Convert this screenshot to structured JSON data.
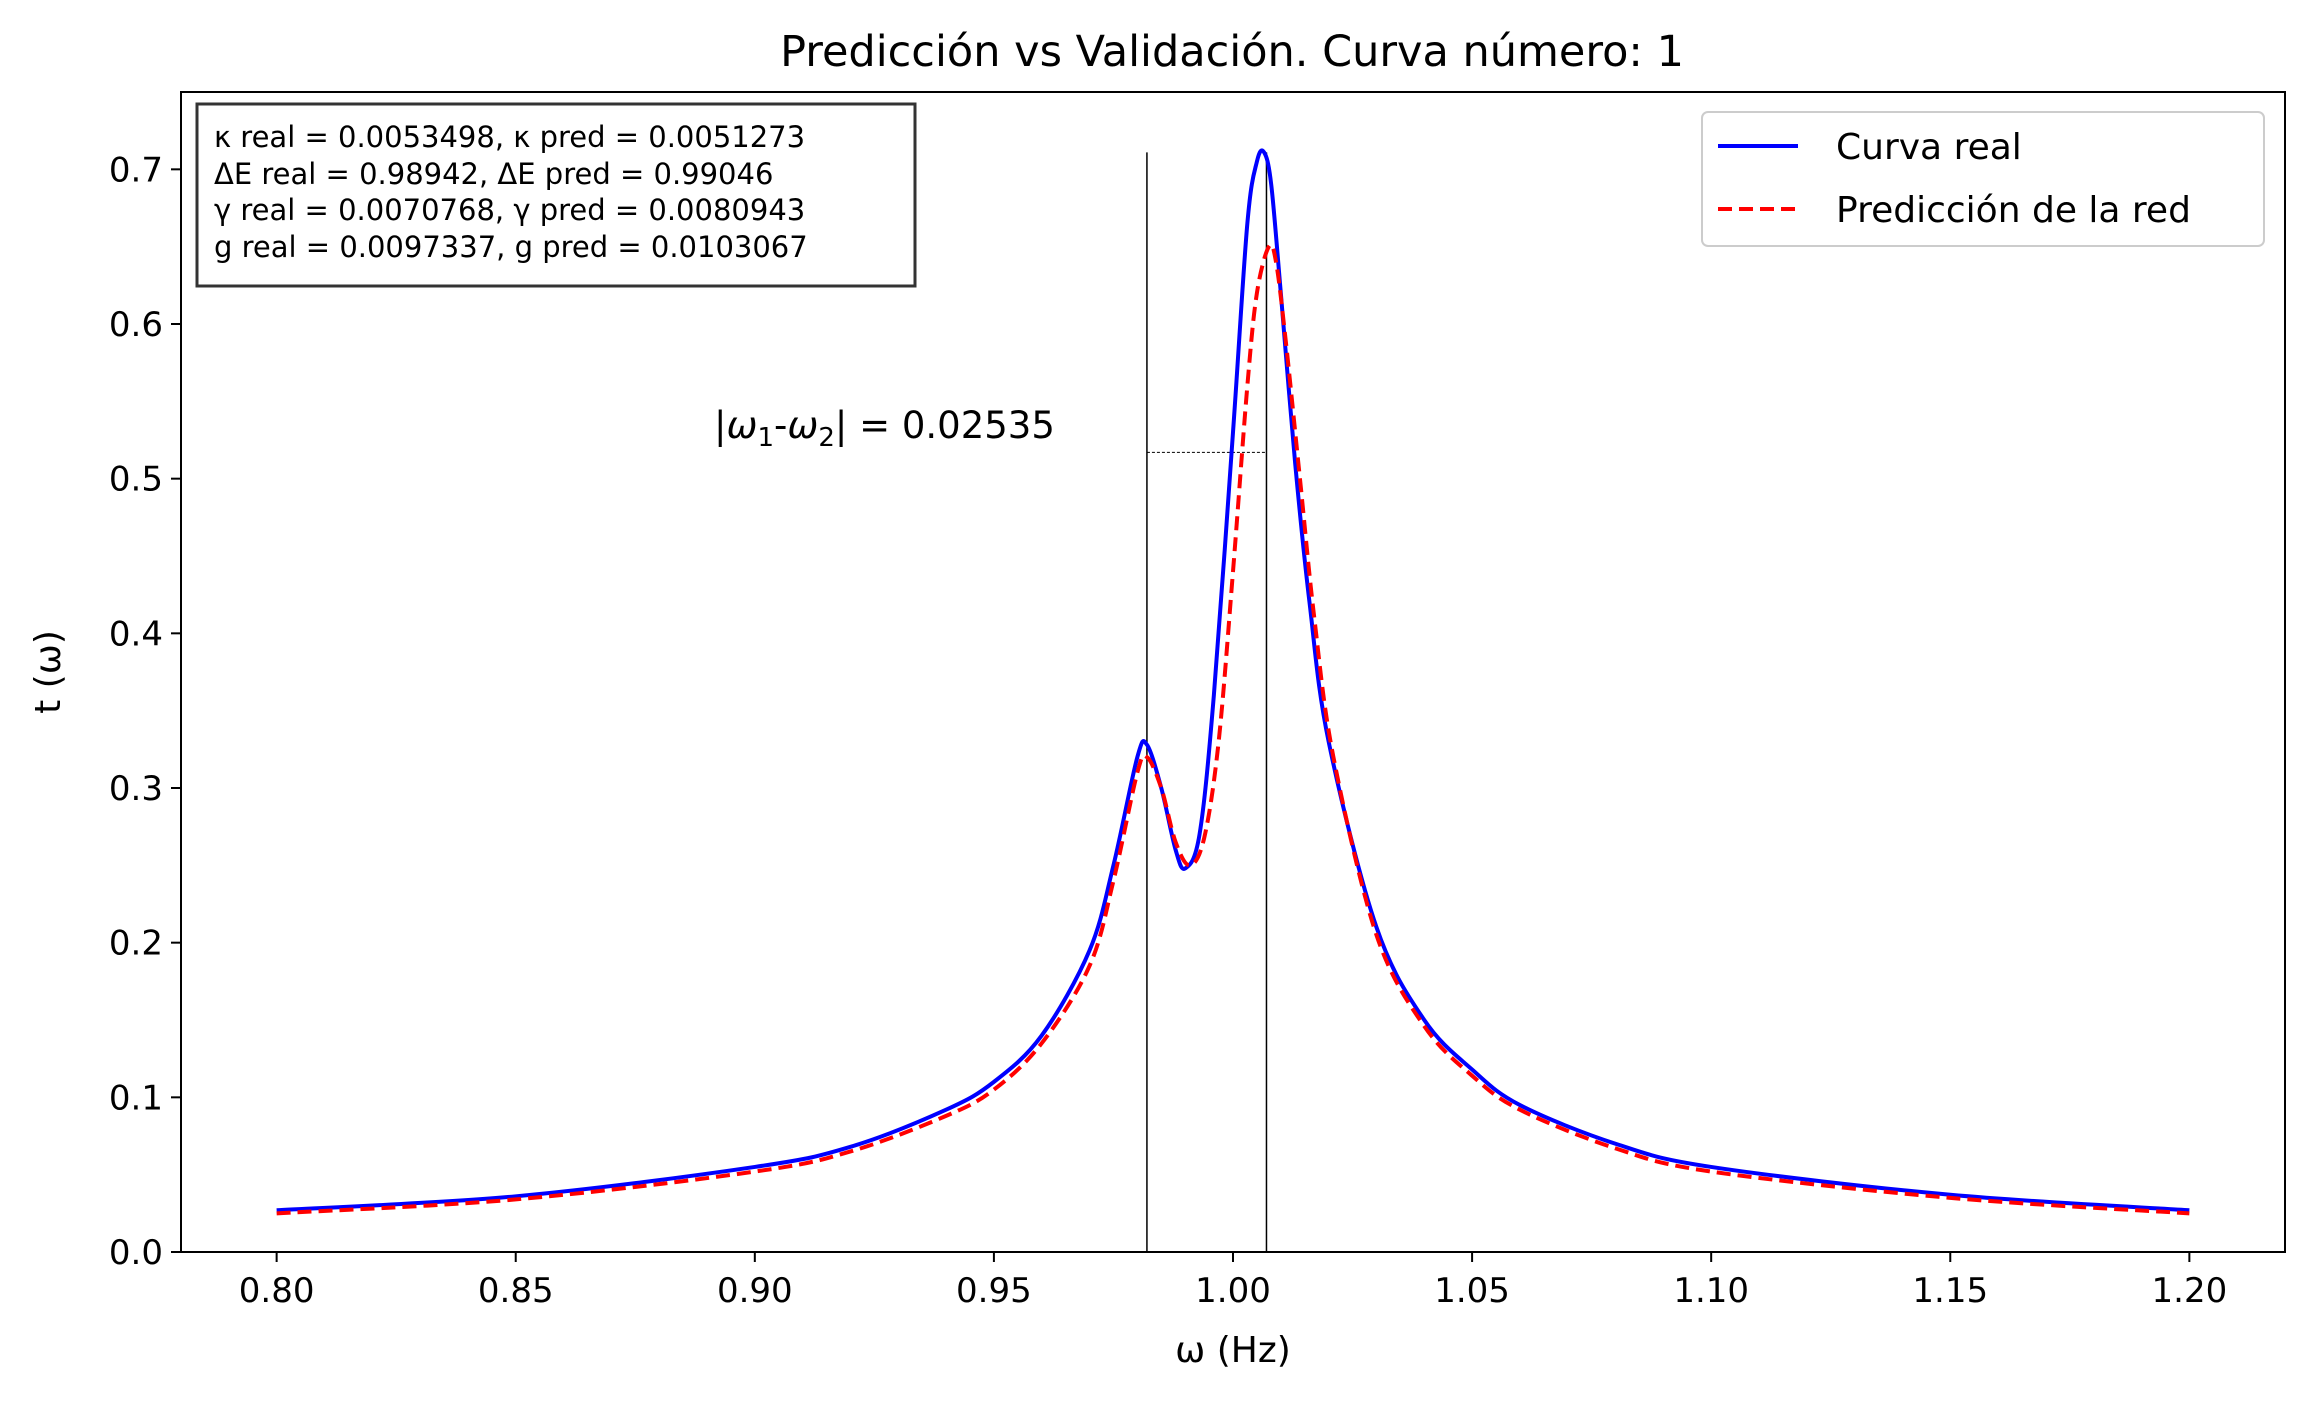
{
  "chart_data": {
    "type": "line",
    "title": "Predicción vs Validación. Curva número: 1",
    "xlabel": "ω (Hz)",
    "ylabel": "t (ω)",
    "xlim": [
      0.78,
      1.22
    ],
    "ylim": [
      0.0,
      0.75
    ],
    "xticks": [
      0.8,
      0.85,
      0.9,
      0.95,
      1.0,
      1.05,
      1.1,
      1.15,
      1.2
    ],
    "xtick_labels": [
      "0.80",
      "0.85",
      "0.90",
      "0.95",
      "1.00",
      "1.05",
      "1.10",
      "1.15",
      "1.20"
    ],
    "yticks": [
      0.0,
      0.1,
      0.2,
      0.3,
      0.4,
      0.5,
      0.6,
      0.7
    ],
    "ytick_labels": [
      "0.0",
      "0.1",
      "0.2",
      "0.3",
      "0.4",
      "0.5",
      "0.6",
      "0.7"
    ],
    "grid": false,
    "legend_position": "top-right",
    "series": [
      {
        "name": "Curva real",
        "color": "#0000ff",
        "style": "solid",
        "x": [
          0.8,
          0.85,
          0.9,
          0.92,
          0.94,
          0.95,
          0.96,
          0.97,
          0.975,
          0.98,
          0.982,
          0.985,
          0.988,
          0.99,
          0.993,
          0.996,
          1.0,
          1.003,
          1.005,
          1.0065,
          1.008,
          1.01,
          1.013,
          1.016,
          1.02,
          1.03,
          1.04,
          1.05,
          1.06,
          1.08,
          1.1,
          1.15,
          1.2
        ],
        "y": [
          0.027,
          0.036,
          0.055,
          0.068,
          0.092,
          0.11,
          0.14,
          0.195,
          0.25,
          0.32,
          0.328,
          0.3,
          0.26,
          0.248,
          0.27,
          0.36,
          0.53,
          0.665,
          0.705,
          0.711,
          0.69,
          0.62,
          0.51,
          0.42,
          0.33,
          0.21,
          0.15,
          0.118,
          0.095,
          0.07,
          0.055,
          0.037,
          0.027
        ]
      },
      {
        "name": "Predicción de la red",
        "color": "#ff0000",
        "style": "dashed",
        "x": [
          0.8,
          0.85,
          0.9,
          0.92,
          0.94,
          0.95,
          0.96,
          0.97,
          0.975,
          0.98,
          0.982,
          0.985,
          0.988,
          0.991,
          0.994,
          0.997,
          1.0,
          1.003,
          1.005,
          1.0075,
          1.009,
          1.011,
          1.014,
          1.017,
          1.021,
          1.03,
          1.04,
          1.05,
          1.06,
          1.08,
          1.1,
          1.15,
          1.2
        ],
        "y": [
          0.025,
          0.034,
          0.052,
          0.065,
          0.088,
          0.105,
          0.135,
          0.185,
          0.24,
          0.31,
          0.32,
          0.3,
          0.265,
          0.25,
          0.268,
          0.33,
          0.44,
          0.56,
          0.62,
          0.65,
          0.64,
          0.59,
          0.5,
          0.41,
          0.32,
          0.205,
          0.146,
          0.114,
          0.092,
          0.067,
          0.052,
          0.035,
          0.025
        ]
      }
    ],
    "vlines": [
      0.982,
      1.007
    ],
    "annotation": {
      "text_prefix": "|",
      "w1": "ω",
      "sub1": "1",
      "dash": "-",
      "w2": "ω",
      "sub2": "2",
      "text_suffix": "| = 0.02535",
      "y_level": 0.517
    },
    "info_box": [
      "κ real = 0.0053498, κ pred = 0.0051273",
      "ΔE real = 0.98942, ΔE pred = 0.99046",
      "γ real = 0.0070768, γ pred = 0.0080943",
      "g real = 0.0097337, g pred = 0.0103067"
    ]
  }
}
